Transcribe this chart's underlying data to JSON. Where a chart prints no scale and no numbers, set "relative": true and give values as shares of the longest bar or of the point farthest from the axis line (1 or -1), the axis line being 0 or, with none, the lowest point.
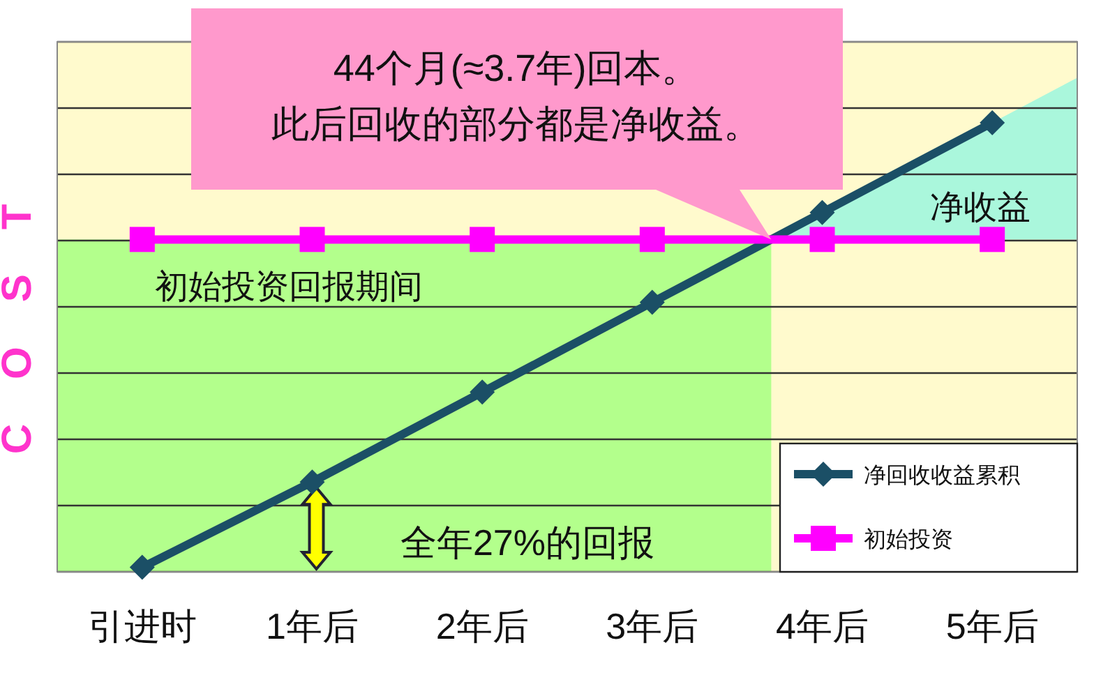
{
  "chart_data": {
    "type": "line",
    "relative": true,
    "ylabel": "COST",
    "categories": [
      "引进时",
      "1年后",
      "2年后",
      "3年后",
      "4年后",
      "5年后"
    ],
    "series": [
      {
        "name": "净回收收益累积",
        "color": "#1b4f66",
        "marker": "diamond",
        "values": [
          0.01,
          0.2,
          0.4,
          0.6,
          0.8,
          1.0
        ]
      },
      {
        "name": "初始投资",
        "color": "#ff00ff",
        "marker": "square",
        "values": [
          0.74,
          0.74,
          0.74,
          0.74,
          0.74,
          0.74
        ]
      }
    ],
    "bands": [
      {
        "axis": "y",
        "from": 0,
        "to": 0.74,
        "label": "初始投资回报期间",
        "color": "#b3ff8c"
      }
    ],
    "annotations": [
      "44个月(≈3.7年)回本。",
      "此后回收的部分都是净收益。",
      "全年27%的回报",
      "净收益"
    ],
    "grid": "y",
    "legend": "bottom right",
    "line_style": "solid"
  }
}
